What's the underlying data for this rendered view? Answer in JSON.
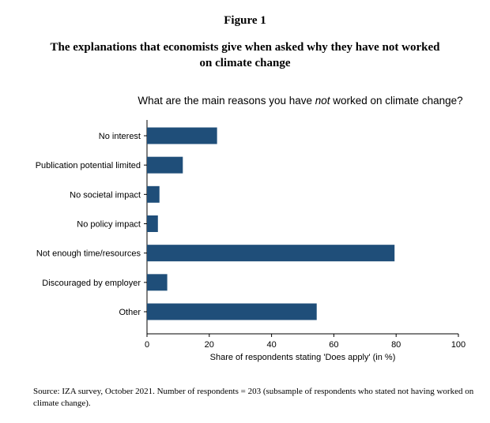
{
  "figure_label": "Figure 1",
  "figure_title": "The explanations that economists give when asked why they have not worked on climate change",
  "source_note": "Source: IZA survey, October 2021. Number of respondents = 203 (subsample of respondents who stated not having worked on climate change).",
  "chart_data": {
    "type": "bar",
    "orientation": "horizontal",
    "title": {
      "before": "What are the main reasons you have ",
      "emphasis": "not",
      "after": " worked on climate change?"
    },
    "categories": [
      "No interest",
      "Publication potential limited",
      "No societal impact",
      "No policy impact",
      "Not enough time/resources",
      "Discouraged by employer",
      "Other"
    ],
    "values": [
      22.5,
      11.5,
      4,
      3.5,
      79.5,
      6.5,
      54.5
    ],
    "xlabel": "Share of respondents stating 'Does apply' (in %)",
    "xlim": [
      0,
      100
    ],
    "xticks": [
      0,
      20,
      40,
      60,
      80,
      100
    ],
    "grid": false,
    "bar_color": "#1f4e79"
  }
}
